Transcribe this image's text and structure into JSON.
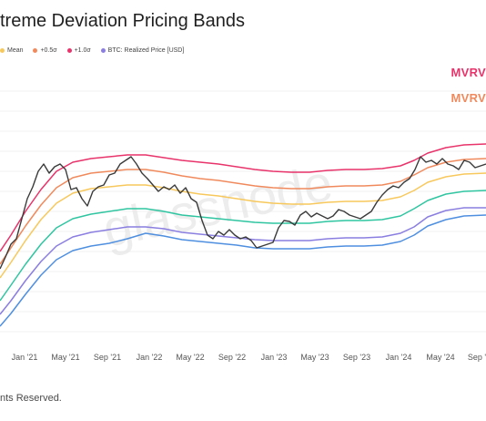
{
  "header": {
    "title": "treme Deviation Pricing Bands"
  },
  "legend": [
    {
      "label": "Mean",
      "color": "#f7c85c"
    },
    {
      "label": "+0.5σ",
      "color": "#f08a5d"
    },
    {
      "label": "+1.0σ",
      "color": "#e8336b"
    },
    {
      "label": "BTC: Realized Price [USD]",
      "color": "#8a7ee0"
    }
  ],
  "tags": {
    "mvrv_top": {
      "text": "MVRV",
      "color": "#e8336b"
    },
    "mvrv_bottom": {
      "text": "MVRV",
      "color": "#f08a5d"
    }
  },
  "watermark": "glassnode",
  "footer": {
    "text": "nts Reserved."
  },
  "chart_data": {
    "type": "line",
    "title": "treme Deviation Pricing Bands",
    "xlabel": "",
    "ylabel": "",
    "x_ticks": [
      "Jan '21",
      "May '21",
      "Sep '21",
      "Jan '22",
      "May '22",
      "Sep '22",
      "Jan '23",
      "May '23",
      "Sep '23",
      "Jan '24",
      "May '24",
      "Sep '"
    ],
    "grid": true,
    "legend_position": "top-left",
    "series": [
      {
        "name": "+1.0σ",
        "color": "#e8336b",
        "values": [
          [
            0,
            276
          ],
          [
            12,
            258
          ],
          [
            28,
            232
          ],
          [
            45,
            208
          ],
          [
            62,
            188
          ],
          [
            80,
            178
          ],
          [
            100,
            174
          ],
          [
            120,
            172
          ],
          [
            140,
            170
          ],
          [
            160,
            170
          ],
          [
            180,
            173
          ],
          [
            200,
            176
          ],
          [
            220,
            178
          ],
          [
            240,
            180
          ],
          [
            260,
            183
          ],
          [
            280,
            186
          ],
          [
            300,
            188
          ],
          [
            320,
            189
          ],
          [
            340,
            189
          ],
          [
            360,
            187
          ],
          [
            380,
            186
          ],
          [
            400,
            186
          ],
          [
            420,
            185
          ],
          [
            440,
            182
          ],
          [
            455,
            176
          ],
          [
            470,
            168
          ],
          [
            490,
            162
          ],
          [
            510,
            159
          ],
          [
            534,
            158
          ]
        ]
      },
      {
        "name": "+0.5σ",
        "color": "#f08a5d",
        "values": [
          [
            0,
            290
          ],
          [
            12,
            272
          ],
          [
            28,
            248
          ],
          [
            45,
            225
          ],
          [
            62,
            206
          ],
          [
            80,
            195
          ],
          [
            100,
            190
          ],
          [
            120,
            188
          ],
          [
            140,
            186
          ],
          [
            160,
            186
          ],
          [
            180,
            189
          ],
          [
            200,
            193
          ],
          [
            220,
            196
          ],
          [
            240,
            198
          ],
          [
            260,
            201
          ],
          [
            280,
            204
          ],
          [
            300,
            206
          ],
          [
            320,
            207
          ],
          [
            340,
            207
          ],
          [
            360,
            205
          ],
          [
            380,
            204
          ],
          [
            400,
            204
          ],
          [
            420,
            203
          ],
          [
            440,
            199
          ],
          [
            455,
            192
          ],
          [
            470,
            184
          ],
          [
            490,
            178
          ],
          [
            510,
            175
          ],
          [
            534,
            174
          ]
        ]
      },
      {
        "name": "Mean",
        "color": "#f7c85c",
        "values": [
          [
            0,
            305
          ],
          [
            12,
            288
          ],
          [
            28,
            264
          ],
          [
            45,
            241
          ],
          [
            62,
            223
          ],
          [
            80,
            212
          ],
          [
            100,
            207
          ],
          [
            120,
            205
          ],
          [
            140,
            203
          ],
          [
            160,
            203
          ],
          [
            180,
            206
          ],
          [
            200,
            210
          ],
          [
            220,
            213
          ],
          [
            240,
            215
          ],
          [
            260,
            218
          ],
          [
            280,
            221
          ],
          [
            300,
            223
          ],
          [
            320,
            224
          ],
          [
            340,
            224
          ],
          [
            360,
            222
          ],
          [
            380,
            221
          ],
          [
            400,
            221
          ],
          [
            420,
            220
          ],
          [
            440,
            216
          ],
          [
            455,
            209
          ],
          [
            470,
            200
          ],
          [
            490,
            194
          ],
          [
            510,
            191
          ],
          [
            534,
            190
          ]
        ]
      },
      {
        "name": "",
        "color": "#2fc5a0",
        "values": [
          [
            0,
            330
          ],
          [
            12,
            313
          ],
          [
            28,
            290
          ],
          [
            45,
            268
          ],
          [
            62,
            250
          ],
          [
            80,
            240
          ],
          [
            100,
            235
          ],
          [
            120,
            232
          ],
          [
            140,
            229
          ],
          [
            160,
            229
          ],
          [
            180,
            232
          ],
          [
            200,
            236
          ],
          [
            220,
            238
          ],
          [
            240,
            240
          ],
          [
            260,
            242
          ],
          [
            280,
            244
          ],
          [
            300,
            245
          ],
          [
            320,
            245
          ],
          [
            340,
            245
          ],
          [
            360,
            243
          ],
          [
            380,
            242
          ],
          [
            400,
            242
          ],
          [
            420,
            241
          ],
          [
            440,
            237
          ],
          [
            455,
            229
          ],
          [
            470,
            220
          ],
          [
            490,
            213
          ],
          [
            510,
            210
          ],
          [
            534,
            209
          ]
        ]
      },
      {
        "name": "BTC: Realized Price [USD]",
        "color": "#8a7ee0",
        "values": [
          [
            0,
            345
          ],
          [
            12,
            330
          ],
          [
            28,
            308
          ],
          [
            45,
            287
          ],
          [
            62,
            270
          ],
          [
            80,
            260
          ],
          [
            100,
            255
          ],
          [
            120,
            252
          ],
          [
            140,
            249
          ],
          [
            160,
            249
          ],
          [
            180,
            251
          ],
          [
            200,
            255
          ],
          [
            220,
            257
          ],
          [
            240,
            259
          ],
          [
            260,
            261
          ],
          [
            280,
            263
          ],
          [
            300,
            264
          ],
          [
            320,
            264
          ],
          [
            340,
            264
          ],
          [
            360,
            262
          ],
          [
            380,
            261
          ],
          [
            400,
            261
          ],
          [
            420,
            260
          ],
          [
            440,
            256
          ],
          [
            455,
            249
          ],
          [
            470,
            238
          ],
          [
            490,
            231
          ],
          [
            510,
            228
          ],
          [
            534,
            228
          ]
        ]
      },
      {
        "name": "",
        "color": "#4f8fe0",
        "values": [
          [
            0,
            358
          ],
          [
            12,
            344
          ],
          [
            28,
            323
          ],
          [
            45,
            302
          ],
          [
            62,
            285
          ],
          [
            80,
            275
          ],
          [
            100,
            270
          ],
          [
            120,
            267
          ],
          [
            140,
            262
          ],
          [
            160,
            256
          ],
          [
            180,
            259
          ],
          [
            200,
            263
          ],
          [
            220,
            265
          ],
          [
            240,
            267
          ],
          [
            260,
            269
          ],
          [
            280,
            272
          ],
          [
            300,
            273
          ],
          [
            320,
            273
          ],
          [
            340,
            273
          ],
          [
            360,
            271
          ],
          [
            380,
            270
          ],
          [
            400,
            270
          ],
          [
            420,
            269
          ],
          [
            440,
            265
          ],
          [
            455,
            258
          ],
          [
            470,
            248
          ],
          [
            490,
            241
          ],
          [
            510,
            237
          ],
          [
            534,
            236
          ]
        ]
      },
      {
        "name": "",
        "color": "#3a3a3a",
        "values": [
          [
            0,
            295
          ],
          [
            6,
            282
          ],
          [
            12,
            268
          ],
          [
            18,
            262
          ],
          [
            24,
            240
          ],
          [
            30,
            218
          ],
          [
            36,
            205
          ],
          [
            42,
            188
          ],
          [
            48,
            180
          ],
          [
            54,
            190
          ],
          [
            60,
            183
          ],
          [
            66,
            180
          ],
          [
            72,
            186
          ],
          [
            78,
            208
          ],
          [
            84,
            206
          ],
          [
            90,
            218
          ],
          [
            96,
            226
          ],
          [
            102,
            210
          ],
          [
            108,
            205
          ],
          [
            114,
            203
          ],
          [
            120,
            192
          ],
          [
            126,
            190
          ],
          [
            132,
            180
          ],
          [
            138,
            176
          ],
          [
            144,
            172
          ],
          [
            150,
            180
          ],
          [
            156,
            190
          ],
          [
            162,
            196
          ],
          [
            168,
            203
          ],
          [
            174,
            210
          ],
          [
            180,
            205
          ],
          [
            186,
            208
          ],
          [
            192,
            203
          ],
          [
            198,
            212
          ],
          [
            204,
            206
          ],
          [
            210,
            218
          ],
          [
            216,
            222
          ],
          [
            222,
            242
          ],
          [
            228,
            258
          ],
          [
            234,
            262
          ],
          [
            240,
            254
          ],
          [
            246,
            258
          ],
          [
            252,
            252
          ],
          [
            258,
            258
          ],
          [
            264,
            262
          ],
          [
            270,
            260
          ],
          [
            276,
            264
          ],
          [
            282,
            272
          ],
          [
            288,
            270
          ],
          [
            294,
            268
          ],
          [
            300,
            266
          ],
          [
            306,
            250
          ],
          [
            312,
            242
          ],
          [
            318,
            243
          ],
          [
            324,
            247
          ],
          [
            330,
            236
          ],
          [
            336,
            232
          ],
          [
            342,
            238
          ],
          [
            348,
            234
          ],
          [
            354,
            237
          ],
          [
            360,
            240
          ],
          [
            366,
            237
          ],
          [
            372,
            230
          ],
          [
            378,
            232
          ],
          [
            384,
            236
          ],
          [
            390,
            238
          ],
          [
            396,
            240
          ],
          [
            402,
            236
          ],
          [
            408,
            232
          ],
          [
            414,
            222
          ],
          [
            420,
            214
          ],
          [
            426,
            208
          ],
          [
            432,
            204
          ],
          [
            438,
            206
          ],
          [
            444,
            200
          ],
          [
            450,
            196
          ],
          [
            456,
            186
          ],
          [
            462,
            172
          ],
          [
            468,
            178
          ],
          [
            474,
            176
          ],
          [
            480,
            180
          ],
          [
            486,
            174
          ],
          [
            492,
            180
          ],
          [
            498,
            182
          ],
          [
            504,
            186
          ],
          [
            510,
            176
          ],
          [
            516,
            178
          ],
          [
            522,
            184
          ],
          [
            528,
            182
          ],
          [
            534,
            180
          ]
        ]
      }
    ]
  }
}
